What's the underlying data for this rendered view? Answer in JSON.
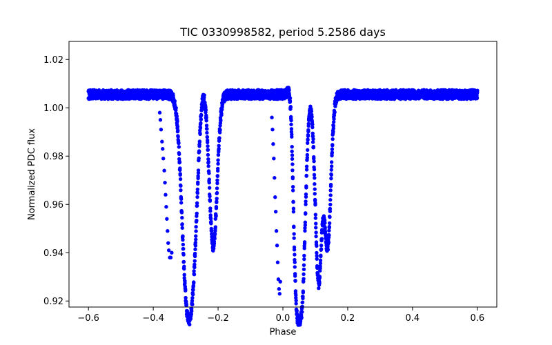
{
  "chart_data": {
    "type": "scatter",
    "title": "TIC 0330998582, period 5.2586 days",
    "xlabel": "Phase",
    "ylabel": "Normalized PDC flux",
    "xlim": [
      -0.66,
      0.66
    ],
    "ylim": [
      0.9175,
      1.0275
    ],
    "xticks": [
      -0.6,
      -0.4,
      -0.2,
      0.0,
      0.2,
      0.4,
      0.6
    ],
    "xtick_labels": [
      "−0.6",
      "−0.4",
      "−0.2",
      "0.0",
      "0.2",
      "0.4",
      "0.6"
    ],
    "yticks": [
      0.92,
      0.94,
      0.96,
      0.98,
      1.0,
      1.02
    ],
    "ytick_labels": [
      "0.92",
      "0.94",
      "0.96",
      "0.98",
      "1.00",
      "1.02"
    ],
    "grid": false,
    "marker_color": "#0000ff",
    "baseline": 1.0055,
    "phase_range": [
      -0.6,
      0.6
    ],
    "dips": [
      {
        "center": -0.3,
        "depth": 0.0675,
        "width": 0.014
      },
      {
        "center": -0.277,
        "depth": 0.0635,
        "width": 0.014
      },
      {
        "center": -0.215,
        "depth": 0.063,
        "width": 0.012
      },
      {
        "center": 0.04,
        "depth": 0.0795,
        "width": 0.01
      },
      {
        "center": 0.06,
        "depth": 0.076,
        "width": 0.01
      },
      {
        "center": 0.11,
        "depth": 0.077,
        "width": 0.01
      },
      {
        "center": 0.138,
        "depth": 0.062,
        "width": 0.01
      }
    ],
    "bumps": [
      {
        "center": -0.248,
        "height": 0.0065,
        "width": 0.01
      },
      {
        "center": 0.028,
        "height": 0.0175,
        "width": 0.008
      }
    ],
    "sparse_points": [
      {
        "x": -0.38,
        "y": 0.998
      },
      {
        "x": -0.378,
        "y": 0.995
      },
      {
        "x": -0.376,
        "y": 0.991
      },
      {
        "x": -0.373,
        "y": 0.986
      },
      {
        "x": -0.371,
        "y": 0.983
      },
      {
        "x": -0.369,
        "y": 0.979
      },
      {
        "x": -0.366,
        "y": 0.974
      },
      {
        "x": -0.364,
        "y": 0.969
      },
      {
        "x": -0.362,
        "y": 0.964
      },
      {
        "x": -0.36,
        "y": 0.959
      },
      {
        "x": -0.358,
        "y": 0.954
      },
      {
        "x": -0.356,
        "y": 0.949
      },
      {
        "x": -0.354,
        "y": 0.944
      },
      {
        "x": -0.352,
        "y": 0.941
      },
      {
        "x": -0.349,
        "y": 0.938
      },
      {
        "x": -0.346,
        "y": 0.938
      },
      {
        "x": -0.343,
        "y": 0.94
      },
      {
        "x": -0.034,
        "y": 0.996
      },
      {
        "x": -0.032,
        "y": 0.991
      },
      {
        "x": -0.03,
        "y": 0.985
      },
      {
        "x": -0.028,
        "y": 0.979
      },
      {
        "x": -0.026,
        "y": 0.971
      },
      {
        "x": -0.024,
        "y": 0.963
      },
      {
        "x": -0.022,
        "y": 0.957
      },
      {
        "x": -0.02,
        "y": 0.949
      },
      {
        "x": -0.018,
        "y": 0.943
      },
      {
        "x": -0.016,
        "y": 0.936
      },
      {
        "x": -0.014,
        "y": 0.929
      },
      {
        "x": -0.012,
        "y": 0.925
      },
      {
        "x": -0.01,
        "y": 0.923
      },
      {
        "x": -0.008,
        "y": 0.928
      }
    ]
  }
}
